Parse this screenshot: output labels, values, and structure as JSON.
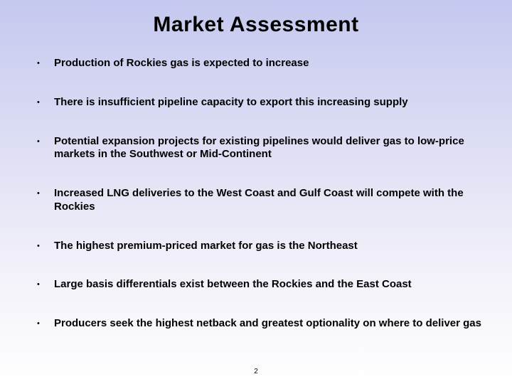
{
  "slide": {
    "title": "Market Assessment",
    "bullets": [
      "Production of Rockies gas is expected to increase",
      "There is insufficient pipeline capacity to export this increasing supply",
      "Potential expansion projects for existing pipelines would deliver gas to low-price markets in the Southwest or Mid-Continent",
      "Increased LNG deliveries to the West Coast and Gulf Coast will compete with the Rockies",
      "The highest premium-priced market for gas is the Northeast",
      "Large basis differentials exist between the Rockies and the East Coast",
      "Producers seek the highest netback and greatest optionality on where to deliver gas"
    ],
    "page_number": "2",
    "style": {
      "background_gradient_top": "#c5c8ef",
      "background_gradient_bottom": "#ffffff",
      "title_fontsize": 30,
      "title_color": "#000000",
      "bullet_fontsize": 15,
      "bullet_fontweight": "bold",
      "bullet_color": "#000000",
      "bullet_marker": "•",
      "font_family": "Arial",
      "slide_width": 720,
      "slide_height": 540
    }
  }
}
